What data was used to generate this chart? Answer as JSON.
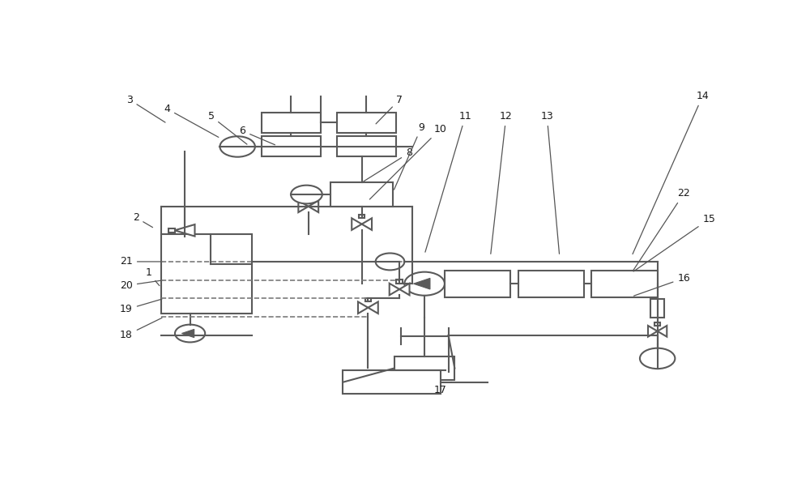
{
  "bg_color": "#ffffff",
  "line_color": "#5a5a5a",
  "line_width": 1.5,
  "dashed_line_color": "#7a7a7a"
}
